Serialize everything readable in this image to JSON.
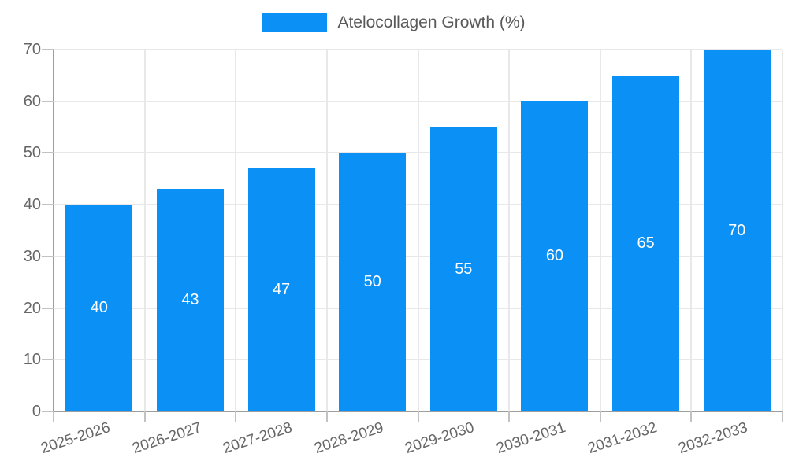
{
  "chart_data": {
    "type": "bar",
    "title": "",
    "legend": {
      "label": "Atelocollagen Growth (%)",
      "position": "top"
    },
    "categories": [
      "2025-2026",
      "2026-2027",
      "2027-2028",
      "2028-2029",
      "2029-2030",
      "2030-2031",
      "2031-2032",
      "2032-2033"
    ],
    "values": [
      40,
      43,
      47,
      50,
      55,
      60,
      65,
      70
    ],
    "xlabel": "",
    "ylabel": "",
    "ylim": [
      0,
      70
    ],
    "yticks": [
      0,
      10,
      20,
      30,
      40,
      50,
      60,
      70
    ],
    "grid": true,
    "bar_value_labels_shown": true,
    "colors": {
      "bar": "#0b90f5",
      "bar_label_text": "#ffffff",
      "gridline": "#e8e8e8",
      "axis_line": "#9e9e9e",
      "tick_mark": "#c2c2c2",
      "tick_text": "#666666",
      "legend_text": "#5a5a5a",
      "background": "#ffffff"
    }
  }
}
